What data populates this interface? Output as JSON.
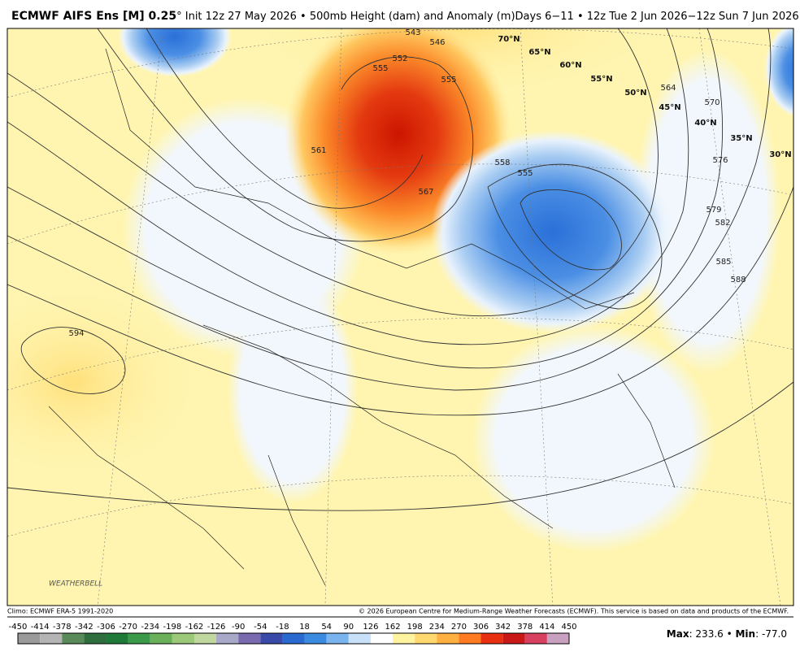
{
  "header": {
    "title_bold": "ECMWF AIFS Ens [M] 0.25",
    "title_rest": "° Init 12z 27 May 2026 • 500mb Height (dam) and Anomaly (m)Days 6−11 • 12z Tue 2 Jun 2026−12z Sun 7 Jun 2026"
  },
  "map": {
    "contour_labels": [
      "543",
      "546",
      "552",
      "555",
      "555",
      "561",
      "567",
      "558",
      "555",
      "564",
      "570",
      "576",
      "579",
      "582",
      "585",
      "588",
      "594"
    ],
    "latitude_labels": [
      "70°N",
      "65°N",
      "60°N",
      "55°N",
      "50°N",
      "45°N",
      "40°N",
      "35°N",
      "30°N"
    ],
    "logo": "WEATHERBELL"
  },
  "footer": {
    "climo": "Climo: ECMWF ERA-5 1991-2020",
    "copyright": "© 2026 European Centre for Medium-Range Weather Forecasts (ECMWF). This service is based on data and products of the ECMWF."
  },
  "colorbar": {
    "ticks": [
      -450,
      -414,
      -378,
      -342,
      -306,
      -270,
      -234,
      -198,
      -162,
      -126,
      -90,
      -54,
      -18,
      18,
      54,
      90,
      126,
      162,
      198,
      234,
      270,
      306,
      342,
      378,
      414,
      450
    ],
    "colors": [
      "#9a9a9a",
      "#b4b4b4",
      "#5a8a5a",
      "#2e6e3e",
      "#1f7a3a",
      "#3a9a4a",
      "#6ab05a",
      "#9cc87a",
      "#c0d8a0",
      "#a8a8c8",
      "#7a6ab0",
      "#3a4aa8",
      "#2a6ad0",
      "#3a8ae0",
      "#7ab4ee",
      "#c8e0f8",
      "#ffffff",
      "#fff3a0",
      "#ffd870",
      "#ffb040",
      "#ff7a20",
      "#e83010",
      "#c81818",
      "#d84060",
      "#c8a0c0"
    ]
  },
  "stats": {
    "max_label": "Max",
    "max_text": ": 233.6 • ",
    "min_label": "Min",
    "min_text": ": -77.0"
  }
}
